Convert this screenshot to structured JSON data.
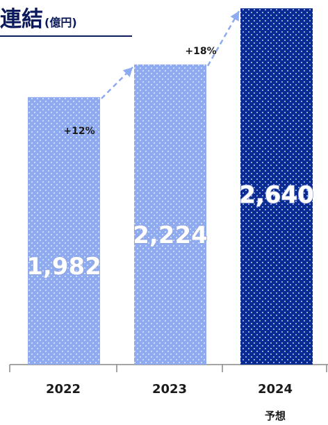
{
  "chart_data": {
    "type": "bar",
    "title": "連結",
    "unit": "(億円)",
    "categories": [
      "2022",
      "2023",
      "2024"
    ],
    "category_sublabels": [
      "",
      "",
      "予想"
    ],
    "values": [
      1982,
      2224,
      2640
    ],
    "value_labels": [
      "1,982",
      "2,224",
      "2,640"
    ],
    "growth_labels": [
      "+12%",
      "+18%"
    ],
    "bar_colors": [
      "#8eaaf0",
      "#8eaaf0",
      "#0a2a94"
    ],
    "title_underline_color": "#0a1a5c",
    "ylim": [
      0,
      2640
    ]
  }
}
